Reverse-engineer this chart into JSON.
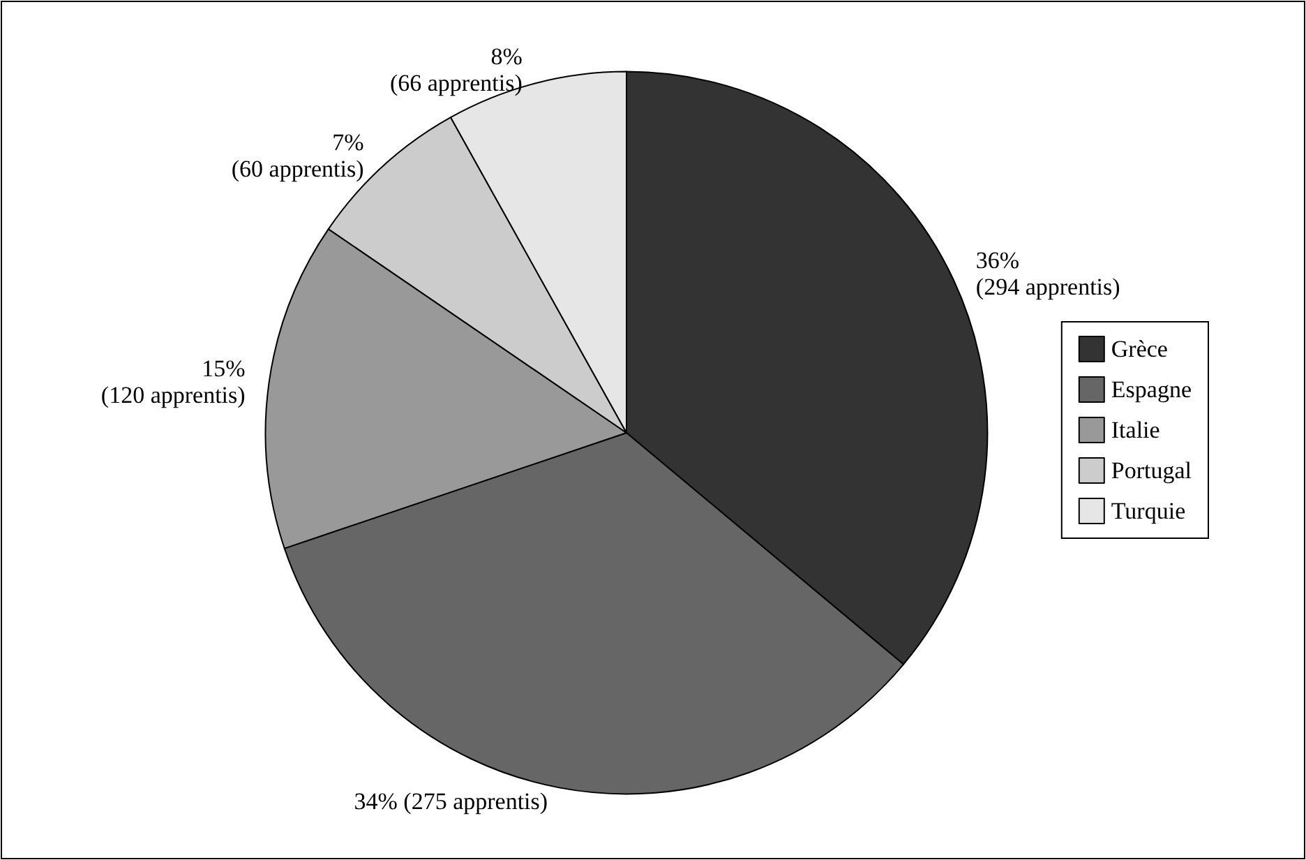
{
  "chart_data": {
    "type": "pie",
    "categories": [
      "Grèce",
      "Espagne",
      "Italie",
      "Portugal",
      "Turquie"
    ],
    "values": [
      294,
      275,
      120,
      60,
      66
    ],
    "colors": [
      "#333333",
      "#666666",
      "#999999",
      "#cccccc",
      "#e6e6e6"
    ],
    "value_labels": [
      "36%\n(294 apprentis)",
      "34% (275 apprentis)",
      "15%\n(120 apprentis)",
      "7%\n(60 apprentis)",
      "8%\n(66 apprentis)"
    ],
    "legend": "right"
  }
}
